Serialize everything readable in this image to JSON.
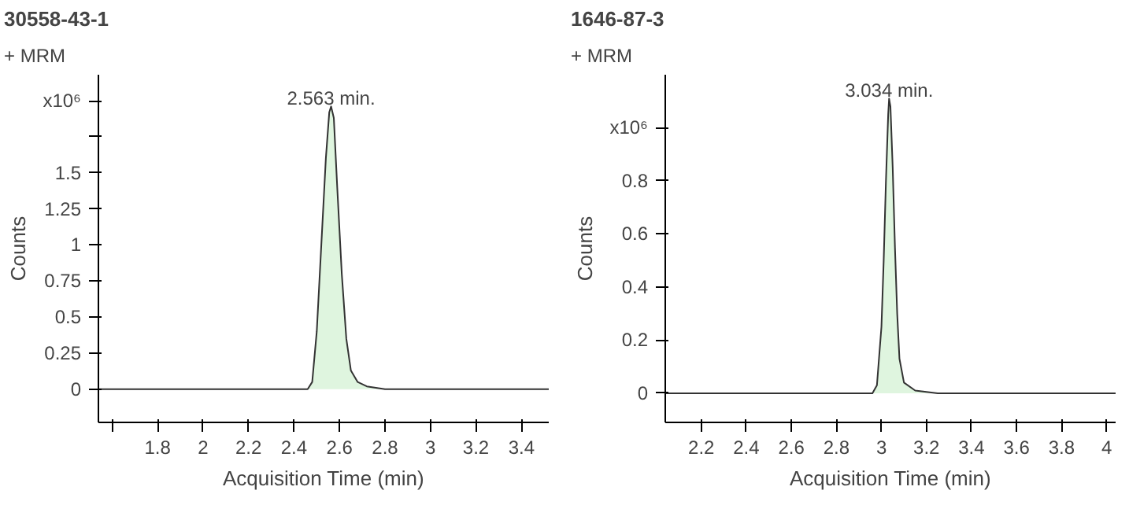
{
  "chart_data": [
    {
      "type": "area",
      "title": "30558-43-1",
      "xlabel": "Acquisition Time (min)",
      "ylabel": "Counts",
      "x": [
        1.54,
        2.46,
        2.48,
        2.5,
        2.52,
        2.54,
        2.555,
        2.563,
        2.575,
        2.59,
        2.61,
        2.63,
        2.65,
        2.68,
        2.72,
        2.8,
        3.52
      ],
      "series": [
        {
          "color": "#dff5df",
          "values": [
            0,
            0,
            0.05,
            0.4,
            1.0,
            1.6,
            1.92,
            1.96,
            1.88,
            1.4,
            0.8,
            0.35,
            0.13,
            0.05,
            0.02,
            0,
            0
          ]
        }
      ],
      "xlim": [
        1.54,
        3.52
      ],
      "ylim": [
        -0.23,
        2.18
      ],
      "xticks": [
        {
          "value": 1.6,
          "label": null
        },
        1.8,
        2,
        2.2,
        2.4,
        2.6,
        2.8,
        3,
        3.2,
        3.4
      ],
      "yticks": [
        0,
        0.25,
        0.5,
        0.75,
        1,
        1.25,
        1.5,
        {
          "value": 1.75,
          "label": null
        },
        {
          "value": 2,
          "label": null
        }
      ],
      "annotations": [
        "+ MRM",
        "x10⁶",
        {
          "text": "2.563 min.",
          "x": 2.563,
          "y": 1.96
        }
      ],
      "grid": false
    },
    {
      "type": "area",
      "title": "1646-87-3",
      "xlabel": "Acquisition Time (min)",
      "ylabel": "Counts",
      "x": [
        2.04,
        2.96,
        2.98,
        3.0,
        3.01,
        3.02,
        3.03,
        3.034,
        3.04,
        3.05,
        3.06,
        3.07,
        3.08,
        3.1,
        3.15,
        3.25,
        4.04
      ],
      "series": [
        {
          "color": "#dff5df",
          "values": [
            0,
            0,
            0.03,
            0.25,
            0.5,
            0.8,
            1.05,
            1.11,
            1.08,
            0.85,
            0.55,
            0.3,
            0.13,
            0.04,
            0.01,
            0,
            0
          ]
        }
      ],
      "xlim": [
        2.04,
        4.04
      ],
      "ylim": [
        -0.11,
        1.2
      ],
      "xticks": [
        2.2,
        2.4,
        2.6,
        2.8,
        3,
        3.2,
        3.4,
        3.6,
        3.8,
        4
      ],
      "yticks": [
        0,
        0.2,
        0.4,
        0.6,
        0.8,
        {
          "value": 1.0,
          "label": null
        }
      ],
      "annotations": [
        "+ MRM",
        "x10⁶",
        {
          "text": "3.034 min.",
          "x": 3.034,
          "y": 1.11
        }
      ],
      "grid": false
    }
  ]
}
